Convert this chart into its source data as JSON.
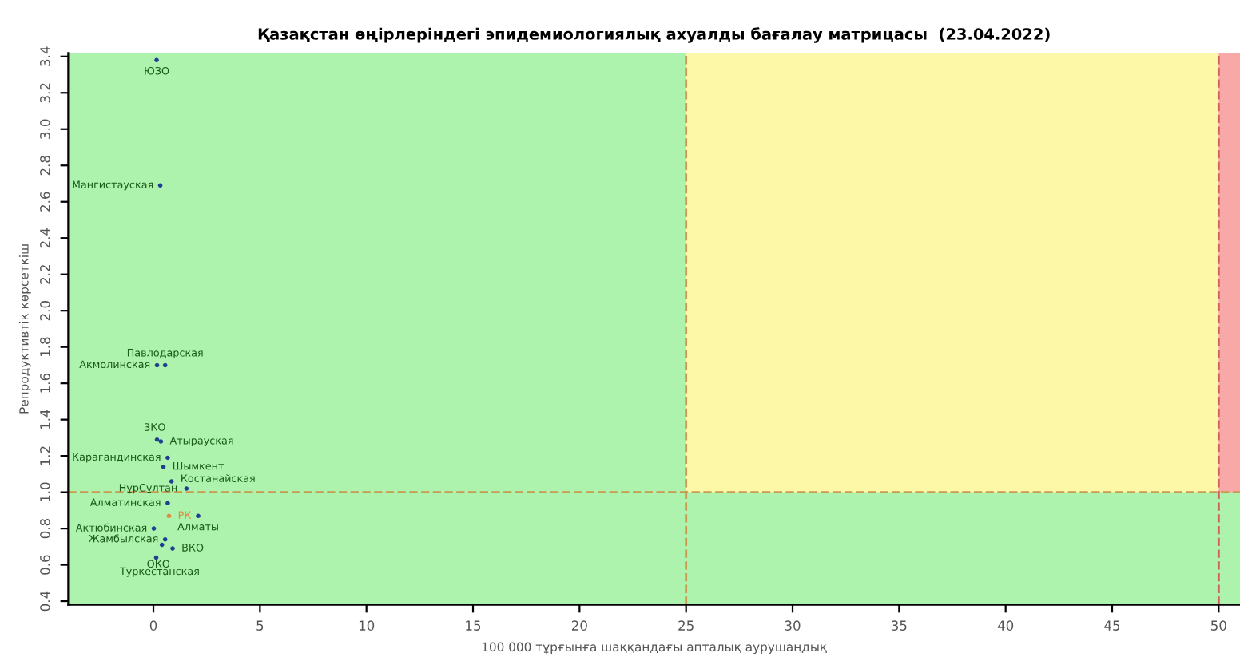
{
  "chart_data": {
    "type": "scatter",
    "title": "Қазақстан өңірлеріндегі эпидемиологиялық ахуалды бағалау матрицасы  (23.04.2022)",
    "xlabel": "100 000 тұрғынға шаққандағы апталық аурушаңдық",
    "ylabel": "Репродуктивтік көрсеткіш",
    "series": [
      {
        "colors": [
          "#1f3f8f",
          "#1f3f8f",
          "#1f3f8f",
          "#1f3f8f",
          "#1f3f8f",
          "#1f3f8f",
          "#1f3f8f",
          "#1f3f8f",
          "#1f3f8f",
          "#1f3f8f",
          "#1f3f8f",
          "#e08a3c",
          "#1f3f8f",
          "#1f3f8f",
          "#1f3f8f",
          "#1f3f8f",
          "#1f3f8f",
          "#1f3f8f"
        ],
        "x": [
          0.15,
          0.32,
          0.17,
          0.55,
          0.17,
          0.35,
          0.67,
          0.47,
          0.85,
          1.55,
          0.67,
          0.73,
          2.1,
          0.02,
          0.55,
          0.9,
          0.13,
          0.4
        ],
        "values": [
          3.38,
          2.69,
          1.7,
          1.7,
          1.29,
          1.28,
          1.19,
          1.14,
          1.06,
          1.02,
          0.94,
          0.87,
          0.87,
          0.8,
          0.74,
          0.69,
          0.64,
          0.71
        ]
      }
    ],
    "annotations": [
      {
        "text": "ЮЗО",
        "x": 0.15,
        "y": 3.38
      },
      {
        "text": "Мангистауская",
        "x": 0.32,
        "y": 2.69
      },
      {
        "text": "Акмолинская",
        "x": 0.17,
        "y": 1.7
      },
      {
        "text": "Павлодарская",
        "x": 0.55,
        "y": 1.7
      },
      {
        "text": "ЗКО",
        "x": 0.17,
        "y": 1.29
      },
      {
        "text": "Атырауская",
        "x": 0.35,
        "y": 1.28
      },
      {
        "text": "Карагандинская",
        "x": 0.67,
        "y": 1.19
      },
      {
        "text": "Шымкент",
        "x": 0.47,
        "y": 1.14
      },
      {
        "text": "Костанайская",
        "x": 0.85,
        "y": 1.06
      },
      {
        "text": "НұрСұлтан",
        "x": 1.55,
        "y": 1.02
      },
      {
        "text": "Алматинская",
        "x": 0.67,
        "y": 0.94
      },
      {
        "text": "РК",
        "x": 0.73,
        "y": 0.87
      },
      {
        "text": "Алматы",
        "x": 2.1,
        "y": 0.87
      },
      {
        "text": "Актюбинская",
        "x": 0.02,
        "y": 0.8
      },
      {
        "text": "Жамбылская",
        "x": 0.55,
        "y": 0.74
      },
      {
        "text": "ВКО",
        "x": 0.9,
        "y": 0.69
      },
      {
        "text": "ОКО",
        "x": 0.13,
        "y": 0.64
      },
      {
        "text": "Туркестанская",
        "x": 0.4,
        "y": 0.71
      }
    ],
    "xlim": [
      -4,
      51
    ],
    "ylim": [
      0.38,
      3.42
    ],
    "xticks": [
      0,
      5,
      10,
      15,
      20,
      25,
      30,
      35,
      40,
      45,
      50
    ],
    "yticks": [
      0.4,
      0.6,
      0.8,
      {
        "value": 1,
        "label": "1.0"
      },
      1.2,
      1.4,
      1.6,
      1.8,
      {
        "value": 2,
        "label": "2.0"
      },
      2.2,
      2.4,
      2.6,
      2.8,
      {
        "value": 3,
        "label": "3.0"
      },
      3.2,
      3.4
    ],
    "bands": [
      {
        "axis": "x",
        "from": -4,
        "to": 25,
        "color": "#adf2ad"
      },
      {
        "axis": "x",
        "from": 25,
        "to": 50,
        "color": "#fdf8a8"
      },
      {
        "axis": "x",
        "from": 50,
        "to": 51,
        "color": "#f9a8a8"
      },
      {
        "axis": "y",
        "from": 0.38,
        "to": 1.0,
        "color": "#adf2ad"
      }
    ],
    "ref_lines": [
      {
        "axis": "y",
        "value": 1.0,
        "color": "#c89a50",
        "line_style": "dashed"
      },
      {
        "axis": "x",
        "value": 25,
        "color": "#c89a50",
        "line_style": "dashed"
      },
      {
        "axis": "x",
        "value": 50,
        "color": "#d06060",
        "line_style": "dashed"
      }
    ],
    "marker": "circle",
    "grid": false,
    "legend": false
  }
}
